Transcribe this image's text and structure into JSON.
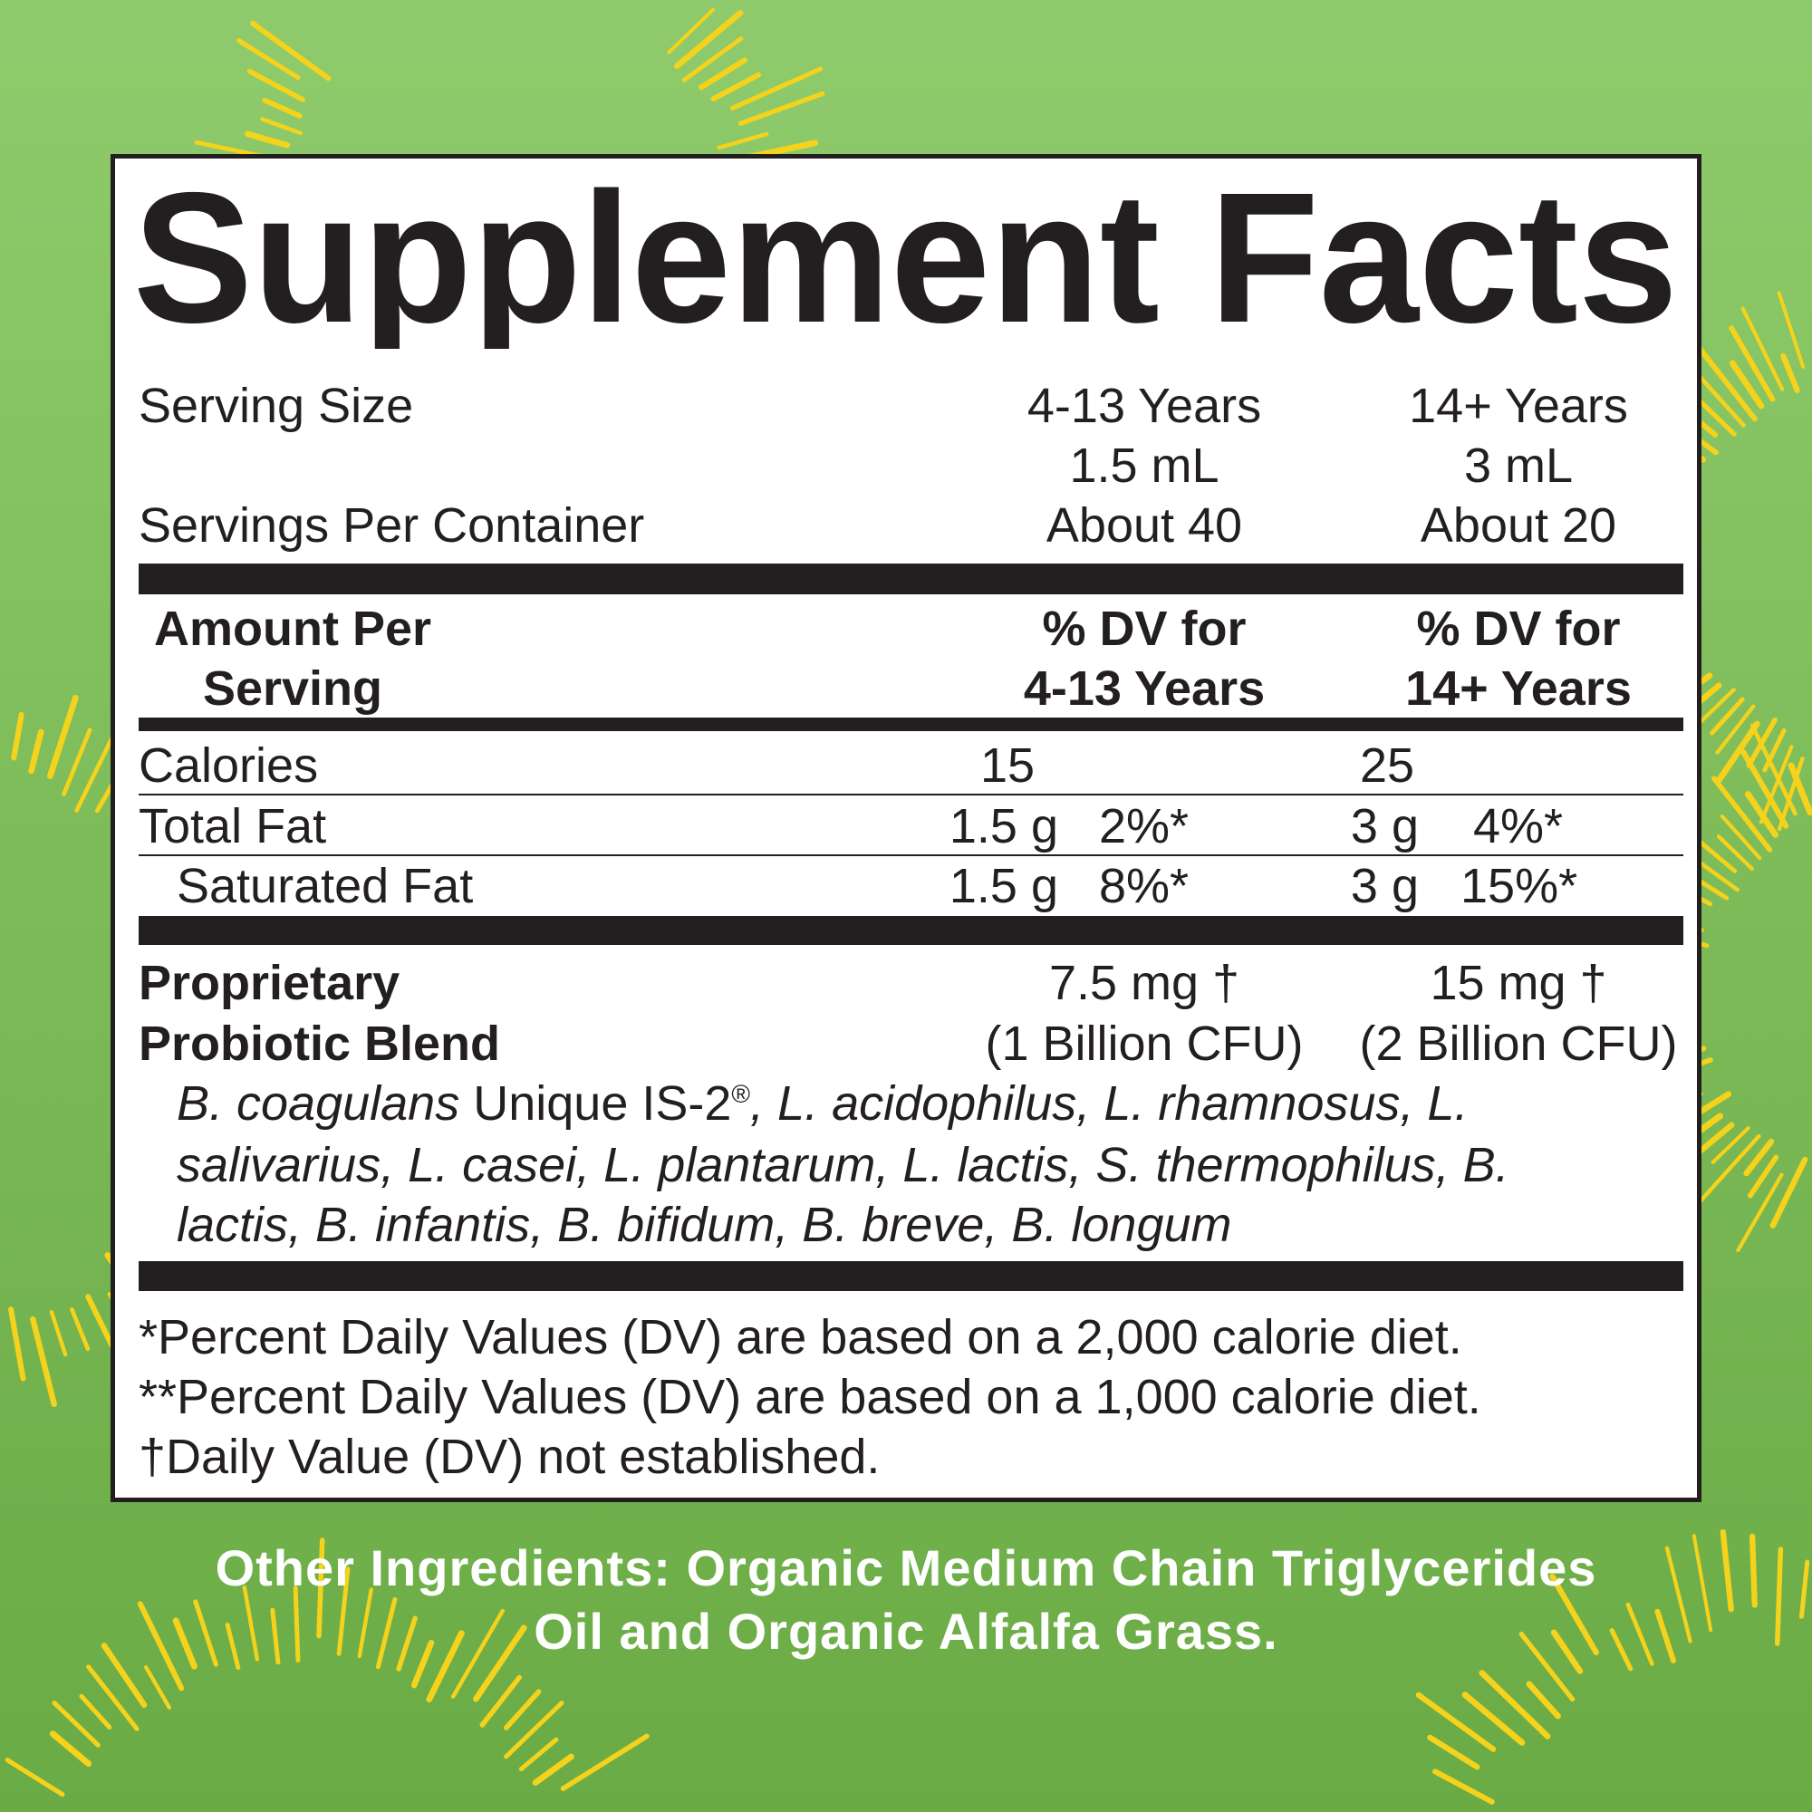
{
  "colors": {
    "background_top": "#8fcb6c",
    "background_bottom": "#6aab45",
    "rays": "#f5d21c",
    "ink": "#231f20"
  },
  "title": "Supplement Facts",
  "serving": {
    "serving_size_label": "Serving Size",
    "servings_per_container_label": "Servings Per Container",
    "columns": [
      {
        "age": "4-13 Years",
        "size": "1.5 mL",
        "servings": "About 40"
      },
      {
        "age": "14+ Years",
        "size": "3 mL",
        "servings": "About 20"
      }
    ]
  },
  "header": {
    "amount_line1": "Amount Per",
    "amount_line2": "Serving",
    "dv_cols": [
      {
        "line1": "% DV for",
        "line2": "4-13 Years"
      },
      {
        "line1": "% DV for",
        "line2": "14+ Years"
      }
    ]
  },
  "nutrients": [
    {
      "name": "Calories",
      "col1_amount": "15",
      "col2_amount": "25"
    },
    {
      "name": "Total Fat",
      "col1_amount": "1.5 g",
      "col1_dv": "2%*",
      "col2_amount": "3 g",
      "col2_dv": "4%*"
    },
    {
      "name": "Saturated Fat",
      "col1_amount": "1.5 g",
      "col1_dv": "8%*",
      "col2_amount": "3 g",
      "col2_dv": "15%*"
    }
  ],
  "blend": {
    "name_line1": "Proprietary",
    "name_line2": "Probiotic Blend",
    "col1_amount": "7.5 mg †",
    "col1_cfu": "(1 Billion CFU)",
    "col2_amount": "15 mg †",
    "col2_cfu": "(2 Billion CFU)",
    "ingredients_line1_italic": "B. coagulans",
    "ingredients_line1_plain": " Unique IS-2",
    "ingredients_line1_reg": "®",
    "ingredients_line1_rest": ", L. acidophilus, L. rhamnosus, L.",
    "ingredients_line2": "salivarius, L. casei, L. plantarum, L. lactis, S. thermophilus, B.",
    "ingredients_line3": "lactis, B. infantis, B. bifidum, B. breve, B. longum"
  },
  "footnotes": [
    "*Percent Daily Values (DV) are based on a 2,000 calorie diet.",
    "**Percent Daily Values (DV) are based on a 1,000 calorie diet.",
    "†Daily Value (DV) not established."
  ],
  "other_ingredients": [
    "Other Ingredients: Organic Medium Chain Triglycerides",
    "Oil and Organic Alfalfa Grass."
  ]
}
